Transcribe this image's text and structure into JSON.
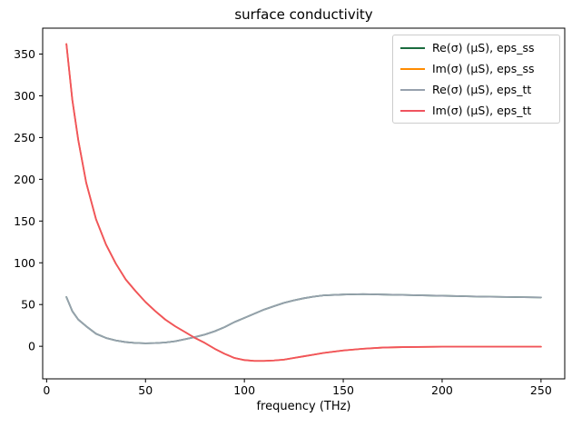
{
  "title": "surface conductivity",
  "xlabel": "frequency (THz)",
  "colors": {
    "background": "#ffffff",
    "axis": "#000000",
    "legend_border": "#cccccc",
    "series_green": "#1a6b3e",
    "series_orange": "#ff8c00",
    "series_gray": "#97a1ad",
    "series_red": "#f0535f"
  },
  "chart_data": {
    "type": "line",
    "title": "surface conductivity",
    "xlabel": "frequency (THz)",
    "ylabel": "",
    "grid": false,
    "legend_position": "upper right",
    "xlim": [
      -2,
      262
    ],
    "ylim": [
      -39,
      381
    ],
    "xticks": [
      0,
      50,
      100,
      150,
      200,
      250
    ],
    "yticks": [
      0,
      50,
      100,
      150,
      200,
      250,
      300,
      350
    ],
    "x": [
      10,
      13,
      16,
      20,
      25,
      30,
      35,
      40,
      45,
      50,
      55,
      60,
      65,
      70,
      75,
      80,
      85,
      90,
      95,
      100,
      105,
      110,
      115,
      120,
      125,
      130,
      135,
      140,
      150,
      160,
      170,
      180,
      200,
      220,
      250
    ],
    "series": [
      {
        "name": "Re(σ) (μS), eps_ss",
        "color": "#1a6b3e",
        "values": [
          59,
          42,
          32,
          24,
          15,
          10,
          7,
          5,
          4,
          3.6,
          3.8,
          4.5,
          6,
          8.5,
          11,
          14,
          18,
          23,
          29,
          34,
          39,
          44,
          48,
          52,
          55,
          57.5,
          59.5,
          61,
          62,
          62.5,
          62,
          61.5,
          60.5,
          59.5,
          58.5
        ]
      },
      {
        "name": "Im(σ) (μS), eps_ss",
        "color": "#ff8c00",
        "values": [
          362,
          295,
          247,
          196,
          152,
          122,
          99,
          80,
          66,
          53,
          42,
          32,
          24,
          17,
          10,
          4,
          -3,
          -9,
          -14,
          -16.5,
          -17.5,
          -17.5,
          -17,
          -16,
          -14,
          -12,
          -10,
          -8,
          -5,
          -3,
          -1.5,
          -1,
          -0.5,
          -0.5,
          -0.5
        ]
      },
      {
        "name": "Re(σ) (μS), eps_tt",
        "color": "#97a1ad",
        "values": [
          59,
          42,
          32,
          24,
          15,
          10,
          7,
          5,
          4,
          3.6,
          3.8,
          4.5,
          6,
          8.5,
          11,
          14,
          18,
          23,
          29,
          34,
          39,
          44,
          48,
          52,
          55,
          57.5,
          59.5,
          61,
          62,
          62.5,
          62,
          61.5,
          60.5,
          59.5,
          58.5
        ]
      },
      {
        "name": "Im(σ) (μS), eps_tt",
        "color": "#f0535f",
        "values": [
          362,
          295,
          247,
          196,
          152,
          122,
          99,
          80,
          66,
          53,
          42,
          32,
          24,
          17,
          10,
          4,
          -3,
          -9,
          -14,
          -16.5,
          -17.5,
          -17.5,
          -17,
          -16,
          -14,
          -12,
          -10,
          -8,
          -5,
          -3,
          -1.5,
          -1,
          -0.5,
          -0.5,
          -0.5
        ]
      }
    ]
  }
}
